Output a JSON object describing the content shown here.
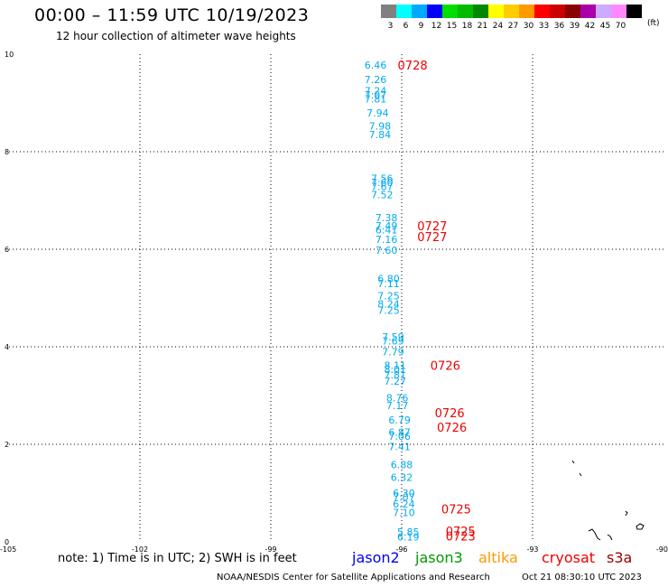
{
  "header": {
    "title": "00:00 – 11:59 UTC 10/19/2023",
    "subtitle": "12 hour collection of altimeter wave heights"
  },
  "colorbar": {
    "unit": "(ft)",
    "entries": [
      {
        "label": "3",
        "color": "#808080"
      },
      {
        "label": "6",
        "color": "#00ffff"
      },
      {
        "label": "9",
        "color": "#00aaff"
      },
      {
        "label": "12",
        "color": "#0000ff"
      },
      {
        "label": "15",
        "color": "#00dd00"
      },
      {
        "label": "18",
        "color": "#00bb00"
      },
      {
        "label": "21",
        "color": "#008800"
      },
      {
        "label": "24",
        "color": "#ffff00"
      },
      {
        "label": "27",
        "color": "#ffcc00"
      },
      {
        "label": "30",
        "color": "#ff9900"
      },
      {
        "label": "33",
        "color": "#ff0000"
      },
      {
        "label": "36",
        "color": "#cc0000"
      },
      {
        "label": "39",
        "color": "#880000"
      },
      {
        "label": "42",
        "color": "#aa00aa"
      },
      {
        "label": "45",
        "color": "#ccaaff"
      },
      {
        "label": "70",
        "color": "#ff88ff"
      },
      {
        "label": "",
        "color": "#000000"
      }
    ]
  },
  "chart_data": {
    "type": "scatter",
    "xlim": [
      -105,
      -90
    ],
    "ylim": [
      0,
      10
    ],
    "x_ticks": [
      {
        "value": -105,
        "label": "-105"
      },
      {
        "value": -102,
        "label": "-102"
      },
      {
        "value": -99,
        "label": "-99"
      },
      {
        "value": -96,
        "label": "-96"
      },
      {
        "value": -93,
        "label": "-93"
      },
      {
        "value": -90,
        "label": "-90"
      }
    ],
    "y_ticks": [
      {
        "value": 0,
        "label": "0"
      },
      {
        "value": 2,
        "label": "2"
      },
      {
        "value": 4,
        "label": "4"
      },
      {
        "value": 6,
        "label": "6"
      },
      {
        "value": 8,
        "label": "8"
      },
      {
        "value": 10,
        "label": "10"
      }
    ],
    "grid": true,
    "wave_labels": [
      {
        "lon": -96.6,
        "lat": 9.78,
        "text": "6.46"
      },
      {
        "lon": -96.6,
        "lat": 9.48,
        "text": "7.26"
      },
      {
        "lon": -96.6,
        "lat": 9.25,
        "text": "7.24"
      },
      {
        "lon": -96.6,
        "lat": 9.17,
        "text": "7.07"
      },
      {
        "lon": -96.6,
        "lat": 9.08,
        "text": "7.81"
      },
      {
        "lon": -96.55,
        "lat": 8.8,
        "text": "7.94"
      },
      {
        "lon": -96.5,
        "lat": 8.53,
        "text": "7.98"
      },
      {
        "lon": -96.5,
        "lat": 8.35,
        "text": "7.84"
      },
      {
        "lon": -96.45,
        "lat": 7.45,
        "text": "7.56"
      },
      {
        "lon": -96.45,
        "lat": 7.37,
        "text": "7.60"
      },
      {
        "lon": -96.45,
        "lat": 7.29,
        "text": "7.67"
      },
      {
        "lon": -96.45,
        "lat": 7.12,
        "text": "7.52"
      },
      {
        "lon": -96.35,
        "lat": 6.65,
        "text": "7.38"
      },
      {
        "lon": -96.35,
        "lat": 6.48,
        "text": "7.49"
      },
      {
        "lon": -96.35,
        "lat": 6.4,
        "text": "6.41"
      },
      {
        "lon": -96.35,
        "lat": 6.2,
        "text": "7.16"
      },
      {
        "lon": -96.35,
        "lat": 5.98,
        "text": "7.60"
      },
      {
        "lon": -96.3,
        "lat": 5.4,
        "text": "6.80"
      },
      {
        "lon": -96.3,
        "lat": 5.3,
        "text": "7.11"
      },
      {
        "lon": -96.3,
        "lat": 5.05,
        "text": "7.25"
      },
      {
        "lon": -96.3,
        "lat": 4.88,
        "text": "8.24"
      },
      {
        "lon": -96.3,
        "lat": 4.75,
        "text": "7.25"
      },
      {
        "lon": -96.2,
        "lat": 4.2,
        "text": "7.59"
      },
      {
        "lon": -96.2,
        "lat": 4.12,
        "text": "7.69"
      },
      {
        "lon": -96.2,
        "lat": 3.9,
        "text": "7.79"
      },
      {
        "lon": -96.15,
        "lat": 3.62,
        "text": "8.11"
      },
      {
        "lon": -96.15,
        "lat": 3.54,
        "text": "8.01"
      },
      {
        "lon": -96.15,
        "lat": 3.43,
        "text": "7.81"
      },
      {
        "lon": -96.15,
        "lat": 3.3,
        "text": "7.27"
      },
      {
        "lon": -96.1,
        "lat": 2.95,
        "text": "8.76"
      },
      {
        "lon": -96.1,
        "lat": 2.8,
        "text": "7.17"
      },
      {
        "lon": -96.05,
        "lat": 2.5,
        "text": "6.79"
      },
      {
        "lon": -96.05,
        "lat": 2.25,
        "text": "6.87"
      },
      {
        "lon": -96.05,
        "lat": 2.17,
        "text": "7.06"
      },
      {
        "lon": -96.05,
        "lat": 1.95,
        "text": "7.41"
      },
      {
        "lon": -96.0,
        "lat": 1.58,
        "text": "6.88"
      },
      {
        "lon": -96.0,
        "lat": 1.32,
        "text": "6.32"
      },
      {
        "lon": -95.95,
        "lat": 1.0,
        "text": "6.30"
      },
      {
        "lon": -95.95,
        "lat": 0.92,
        "text": "7.07"
      },
      {
        "lon": -95.95,
        "lat": 0.78,
        "text": "6.24"
      },
      {
        "lon": -95.95,
        "lat": 0.6,
        "text": "7.10"
      },
      {
        "lon": -95.85,
        "lat": 0.2,
        "text": "5.85"
      },
      {
        "lon": -95.85,
        "lat": 0.1,
        "text": "6.19"
      }
    ],
    "time_labels": [
      {
        "lon": -95.75,
        "lat": 9.78,
        "text": "0728"
      },
      {
        "lon": -95.3,
        "lat": 6.48,
        "text": "0727"
      },
      {
        "lon": -95.3,
        "lat": 6.26,
        "text": "0727"
      },
      {
        "lon": -95.0,
        "lat": 3.62,
        "text": "0726"
      },
      {
        "lon": -94.9,
        "lat": 2.65,
        "text": "0726"
      },
      {
        "lon": -94.85,
        "lat": 2.35,
        "text": "0726"
      },
      {
        "lon": -94.75,
        "lat": 0.68,
        "text": "0725"
      },
      {
        "lon": -94.65,
        "lat": 0.22,
        "text": "0725"
      },
      {
        "lon": -94.65,
        "lat": 0.12,
        "text": "0723"
      }
    ]
  },
  "legend": {
    "note": "note:  1) Time is in UTC;  2) SWH is in feet",
    "satellites": [
      {
        "name": "jason2",
        "color": "#0000ee"
      },
      {
        "name": "jason3",
        "color": "#009900"
      },
      {
        "name": "altika",
        "color": "#ff9900"
      },
      {
        "name": "cryosat",
        "color": "#ee0000"
      },
      {
        "name": "s3a",
        "color": "#990000"
      }
    ]
  },
  "footer": {
    "credit": "NOAA/NESDIS Center for Satellite Applications and Research",
    "date": "Oct 21 08:30:10 UTC 2023"
  },
  "colors": {
    "wave_label": "#00aaee",
    "time_label": "#ee0000",
    "grid": "#000000"
  }
}
